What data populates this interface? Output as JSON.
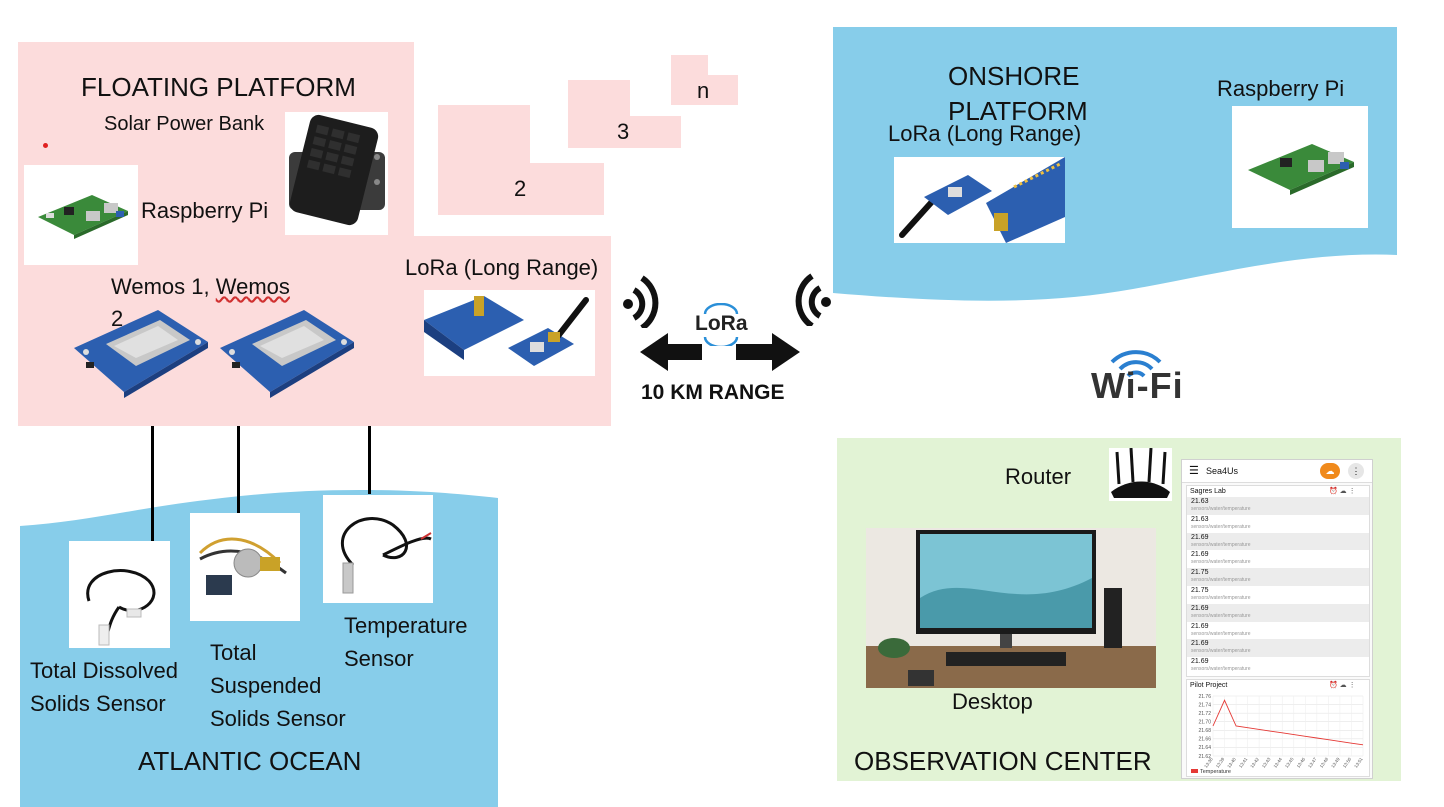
{
  "floating": {
    "title": "FLOATING PLATFORM",
    "solar": "Solar Power Bank",
    "rpi": "Raspberry Pi",
    "wemos_line1": "Wemos 1, ",
    "wemos_line1b": "Wemos",
    "wemos_line2": "2",
    "lora": "LoRa (Long Range)",
    "stack": [
      "2",
      "3",
      "n"
    ]
  },
  "link": {
    "logo": "LoRa",
    "range": "10 KM RANGE"
  },
  "onshore": {
    "title_line1": "ONSHORE",
    "title_line2": "PLATFORM",
    "lora": "LoRa (Long Range)",
    "rpi": "Raspberry Pi"
  },
  "wifi": {
    "label": "Wi-Fi"
  },
  "ocean": {
    "title": "ATLANTIC OCEAN",
    "tds": [
      "Total Dissolved",
      "Solids Sensor"
    ],
    "tss": [
      "Total",
      "Suspended",
      "Solids Sensor"
    ],
    "temp": [
      "Temperature",
      "Sensor"
    ]
  },
  "observation": {
    "title": "OBSERVATION CENTER",
    "router": "Router",
    "desktop": "Desktop",
    "dashboard": {
      "app_title": "Sea4Us",
      "panel1_title": "Sagres Lab",
      "topic": "sensors/water/temperature",
      "readings": [
        "21.63",
        "21.63",
        "21.69",
        "21.69",
        "21.75",
        "21.75",
        "21.69",
        "21.69",
        "21.69",
        "21.69"
      ],
      "panel2_title": "Pilot Project",
      "legend": "Temperature"
    }
  },
  "chart_data": {
    "type": "line",
    "title": "Pilot Project",
    "ylim": [
      21.62,
      21.76
    ],
    "y_ticks": [
      "21.76",
      "21.74",
      "21.72",
      "21.70",
      "21.68",
      "21.66",
      "21.64",
      "21.62"
    ],
    "x": [
      "13:38",
      "13:39",
      "13:40",
      "13:41",
      "13:42",
      "13:43",
      "13:44",
      "13:45",
      "13:46",
      "13:47",
      "13:48",
      "13:49",
      "13:50",
      "13:51"
    ],
    "series": [
      {
        "name": "Temperature",
        "values": [
          21.69,
          21.75,
          21.69,
          21.686,
          21.682,
          21.678,
          21.674,
          21.67,
          21.666,
          21.662,
          21.658,
          21.654,
          21.65,
          21.646
        ]
      }
    ],
    "legend": "bottom-left",
    "grid": true,
    "colors": {
      "line": "#e53935"
    }
  },
  "colors": {
    "pink": "#fcdcdc",
    "ocean": "#87cdea",
    "green": "#e2f3d5"
  }
}
